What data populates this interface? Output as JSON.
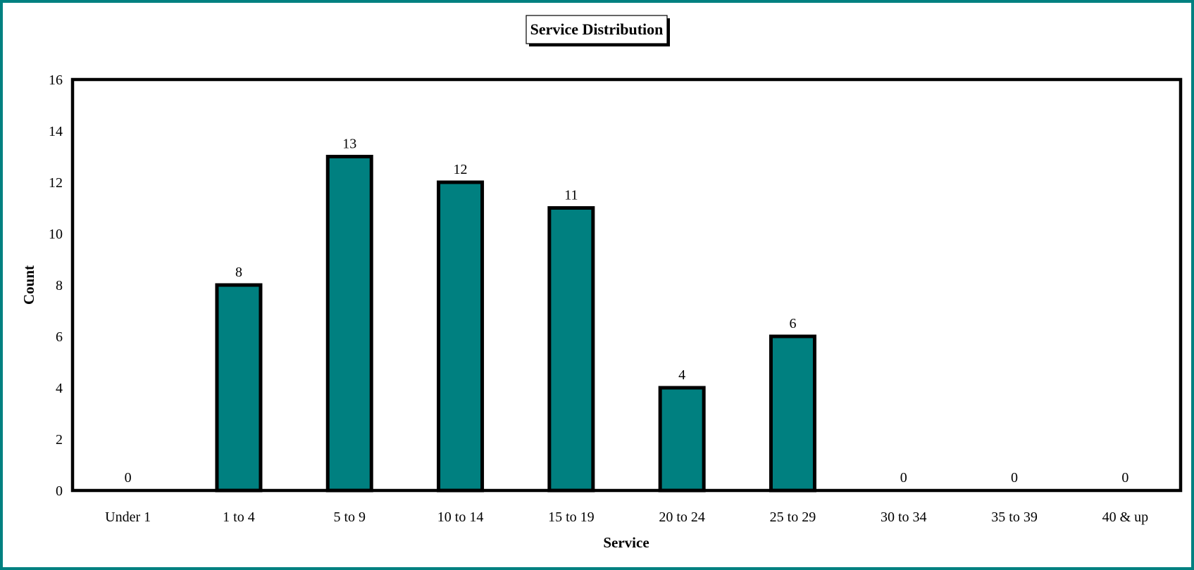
{
  "chart_data": {
    "type": "bar",
    "title": "Service Distribution",
    "xlabel": "Service",
    "ylabel": "Count",
    "categories": [
      "Under 1",
      "1 to 4",
      "5 to 9",
      "10 to 14",
      "15 to 19",
      "20 to 24",
      "25 to 29",
      "30 to 34",
      "35 to 39",
      "40 & up"
    ],
    "values": [
      0,
      8,
      13,
      12,
      11,
      4,
      6,
      0,
      0,
      0
    ],
    "data_labels": [
      "0",
      "8",
      "13",
      "12",
      "11",
      "4",
      "6",
      "0",
      "0",
      "0"
    ],
    "ylim": [
      0,
      16
    ],
    "yticks": [
      "0",
      "2",
      "4",
      "6",
      "8",
      "10",
      "12",
      "14",
      "16"
    ],
    "grid": false,
    "legend": "none",
    "colors": {
      "bar_fill": "#008080",
      "bar_outline": "#000000",
      "frame_border": "#008080",
      "plot_border": "#000000",
      "background": "#ffffff"
    }
  }
}
